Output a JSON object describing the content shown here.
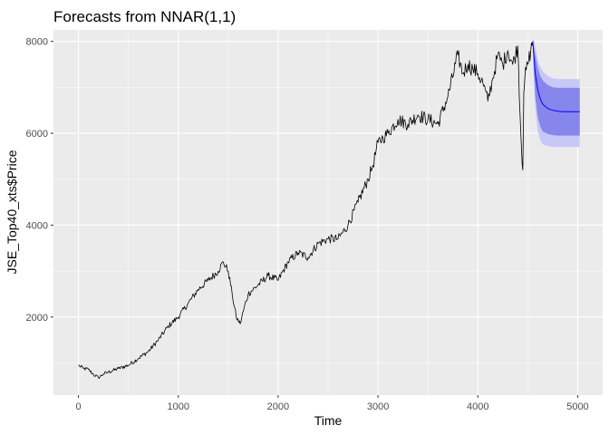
{
  "chart_data": {
    "type": "line",
    "title": "Forecasts from NNAR(1,1)",
    "xlabel": "Time",
    "ylabel": "JSE_Top40_xts$Price",
    "xlim": [
      -250,
      5250
    ],
    "ylim": [
      300,
      8250
    ],
    "x_ticks": [
      0,
      1000,
      2000,
      3000,
      4000,
      5000
    ],
    "y_ticks": [
      2000,
      4000,
      6000,
      8000
    ],
    "grid": true,
    "legend": "none",
    "colors": {
      "panel_background": "#ebebeb",
      "grid_major": "#ffffff",
      "history_line": "#000000",
      "forecast_line": "#0000ff",
      "pi95_fill": "#c8c8f8",
      "pi80_fill": "#8686ec"
    },
    "series": [
      {
        "type": "history",
        "x": [
          0,
          50,
          100,
          150,
          200,
          250,
          300,
          400,
          500,
          600,
          700,
          800,
          900,
          1000,
          1100,
          1200,
          1300,
          1400,
          1450,
          1500,
          1540,
          1580,
          1620,
          1660,
          1700,
          1800,
          1900,
          2000,
          2100,
          2200,
          2300,
          2400,
          2500,
          2600,
          2700,
          2800,
          2900,
          2950,
          3000,
          3050,
          3100,
          3200,
          3300,
          3400,
          3500,
          3600,
          3700,
          3800,
          3850,
          3900,
          3950,
          4000,
          4050,
          4100,
          4150,
          4200,
          4250,
          4300,
          4350,
          4400,
          4430,
          4450,
          4460,
          4470,
          4500,
          4530,
          4550
        ],
        "values": [
          950,
          880,
          860,
          750,
          680,
          760,
          800,
          880,
          950,
          1100,
          1250,
          1500,
          1800,
          2000,
          2300,
          2600,
          2800,
          3000,
          3200,
          3000,
          2500,
          2000,
          1850,
          2200,
          2500,
          2700,
          2900,
          2800,
          3200,
          3400,
          3300,
          3600,
          3700,
          3700,
          4000,
          4500,
          5000,
          5300,
          5800,
          5900,
          6000,
          6300,
          6200,
          6400,
          6300,
          6200,
          6800,
          7700,
          7300,
          7500,
          7400,
          7300,
          7100,
          6700,
          7200,
          7700,
          7500,
          7800,
          7500,
          7900,
          6000,
          5200,
          6900,
          7200,
          7500,
          7800,
          8000
        ]
      },
      {
        "type": "forecast",
        "x": [
          4550,
          4560,
          4575,
          4600,
          4625,
          4650,
          4700,
          4750,
          4800,
          4850,
          4900,
          5000,
          5020
        ],
        "mean": [
          8000,
          7700,
          7300,
          6950,
          6750,
          6630,
          6540,
          6500,
          6480,
          6470,
          6470,
          6470,
          6470
        ],
        "lo80": [
          8000,
          7400,
          6800,
          6350,
          6150,
          6040,
          5990,
          5960,
          5950,
          5950,
          5950,
          5950,
          5950
        ],
        "hi80": [
          8000,
          7900,
          7700,
          7430,
          7250,
          7150,
          7050,
          7000,
          6990,
          6990,
          6990,
          6990,
          6990
        ],
        "lo95": [
          8000,
          7250,
          6550,
          6050,
          5850,
          5760,
          5720,
          5700,
          5700,
          5700,
          5700,
          5700,
          5700
        ],
        "hi95": [
          8000,
          8050,
          7900,
          7600,
          7450,
          7350,
          7250,
          7200,
          7180,
          7180,
          7180,
          7180,
          7180
        ]
      }
    ]
  }
}
